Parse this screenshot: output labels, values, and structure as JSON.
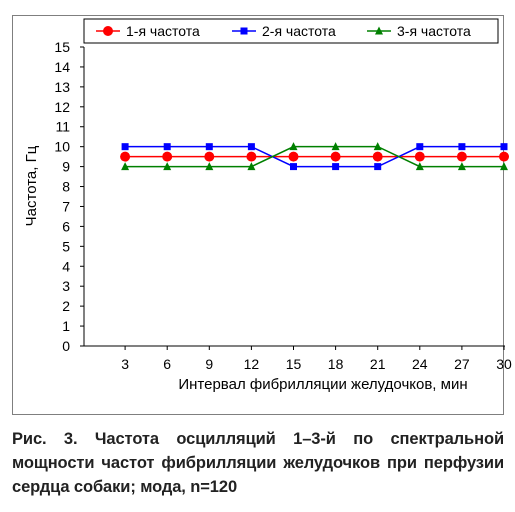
{
  "chart_data": {
    "type": "line",
    "categories": [
      "3",
      "6",
      "9",
      "12",
      "15",
      "18",
      "21",
      "24",
      "27",
      "30"
    ],
    "series": [
      {
        "name": "1-я частота",
        "color": "#ff0000",
        "marker": "circle",
        "values": [
          9.5,
          9.5,
          9.5,
          9.5,
          9.5,
          9.5,
          9.5,
          9.5,
          9.5,
          9.5
        ]
      },
      {
        "name": "2-я частота",
        "color": "#0000ff",
        "marker": "square",
        "values": [
          10,
          10,
          10,
          10,
          9,
          9,
          9,
          10,
          10,
          10
        ]
      },
      {
        "name": "3-я частота",
        "color": "#008000",
        "marker": "triangle",
        "values": [
          9,
          9,
          9,
          9,
          10,
          10,
          10,
          9,
          9,
          9
        ]
      }
    ],
    "xlabel": "Интервал фибрилляции желудочков, мин",
    "ylabel": "Частота, Гц",
    "ylim": [
      0,
      15
    ],
    "yticks": [
      "0",
      "1",
      "2",
      "3",
      "4",
      "5",
      "6",
      "7",
      "8",
      "9",
      "10",
      "11",
      "12",
      "13",
      "14",
      "15"
    ],
    "grid": false,
    "legend_position": "top"
  },
  "caption": "Рис. 3. Частота осцилляций 1–3-й по спектральной мощности частот фибрилляции желудочков при перфузии сердца собаки; мода, n=120"
}
